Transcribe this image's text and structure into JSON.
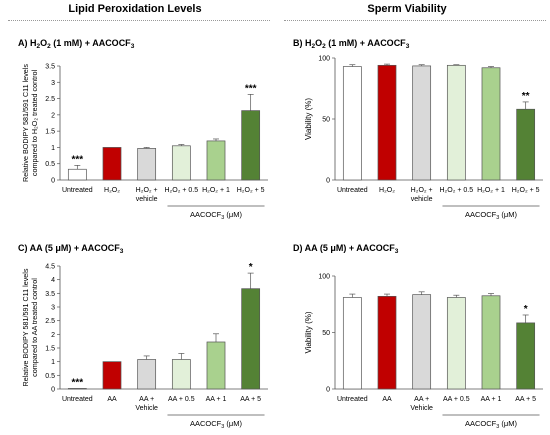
{
  "headers": {
    "left": "Lipid Peroxidation Levels",
    "right": "Sperm Viability"
  },
  "chart_data": [
    {
      "type": "bar",
      "panel": "A",
      "title_parts": [
        "A) H",
        "2",
        "O",
        "2",
        " (1 mM) + AACOCF",
        "3"
      ],
      "ylabel": [
        "Relative BODIPY 581/591 C11 levels",
        "compared to H2O2 treated control"
      ],
      "ylim": [
        0,
        3.5
      ],
      "yticks": [
        0,
        0.5,
        1,
        1.5,
        2,
        2.5,
        3,
        3.5
      ],
      "categories": [
        [
          "Untreated"
        ],
        [
          "H2O2"
        ],
        [
          "H2O2 +",
          "vehicle"
        ],
        [
          "H2O2 + 0.5"
        ],
        [
          "H2O2 + 1"
        ],
        [
          "H2O2 + 5"
        ]
      ],
      "values": [
        0.33,
        1.0,
        0.97,
        1.05,
        1.2,
        2.13
      ],
      "errors": [
        0.12,
        0,
        0.03,
        0.04,
        0.06,
        0.5
      ],
      "annotations": [
        "***",
        "",
        "",
        "",
        "",
        "***"
      ],
      "group_label": "AACOCF3 (μM)",
      "colors": [
        "#ffffff",
        "#c00000",
        "#d9d9d9",
        "#e2f0d9",
        "#a9d18e",
        "#548235"
      ]
    },
    {
      "type": "bar",
      "panel": "B",
      "title_parts": [
        "B) H",
        "2",
        "O",
        "2",
        " (1 mM) + AACOCF",
        "3"
      ],
      "ylabel": [
        "Viability (%)"
      ],
      "ylim": [
        0,
        100
      ],
      "yticks": [
        0,
        50,
        100
      ],
      "categories": [
        [
          "Untreated"
        ],
        [
          "H2O2"
        ],
        [
          "H2O2 +",
          "vehicle"
        ],
        [
          "H2O2 + 0.5"
        ],
        [
          "H2O2 + 1"
        ],
        [
          "H2O2 + 5"
        ]
      ],
      "values": [
        93,
        94,
        93.5,
        94,
        92,
        58
      ],
      "errors": [
        1.5,
        1,
        1,
        0.5,
        1,
        6
      ],
      "annotations": [
        "",
        "",
        "",
        "",
        "",
        "**"
      ],
      "group_label": "AACOCF3 (μM)",
      "colors": [
        "#ffffff",
        "#c00000",
        "#d9d9d9",
        "#e2f0d9",
        "#a9d18e",
        "#548235"
      ]
    },
    {
      "type": "bar",
      "panel": "C",
      "title_parts": [
        "C) AA (5 μM) + AACOCF",
        "3"
      ],
      "ylabel": [
        "Relative BODIPY 581/591 C11 levels",
        "compared to AA treated control"
      ],
      "ylim": [
        0,
        4.5
      ],
      "yticks": [
        0,
        0.5,
        1,
        1.5,
        2,
        2.5,
        3,
        3.5,
        4,
        4.5
      ],
      "categories": [
        [
          "Untreated"
        ],
        [
          "AA"
        ],
        [
          "AA +",
          "Vehicle"
        ],
        [
          "AA + 0.5"
        ],
        [
          "AA + 1"
        ],
        [
          "AA + 5"
        ]
      ],
      "values": [
        0.02,
        1.0,
        1.08,
        1.08,
        1.72,
        3.67
      ],
      "errors": [
        0,
        0,
        0.13,
        0.22,
        0.3,
        0.57
      ],
      "annotations": [
        "***",
        "",
        "",
        "",
        "",
        "*"
      ],
      "group_label": "AACOCF3 (μM)",
      "colors": [
        "#ffffff",
        "#c00000",
        "#d9d9d9",
        "#e2f0d9",
        "#a9d18e",
        "#548235"
      ]
    },
    {
      "type": "bar",
      "panel": "D",
      "title_parts": [
        "D) AA (5 μM) + AACOCF",
        "3"
      ],
      "ylabel": [
        "Viability (%)"
      ],
      "ylim": [
        0,
        100
      ],
      "yticks": [
        0,
        50,
        100
      ],
      "categories": [
        [
          "Untreated"
        ],
        [
          "AA"
        ],
        [
          "AA +",
          "Vehicle"
        ],
        [
          "AA + 0.5"
        ],
        [
          "AA + 1"
        ],
        [
          "AA + 5"
        ]
      ],
      "values": [
        81,
        82,
        83.5,
        81,
        82.5,
        58.5
      ],
      "errors": [
        3,
        2,
        2.5,
        2,
        2,
        7
      ],
      "annotations": [
        "",
        "",
        "",
        "",
        "",
        "*"
      ],
      "group_label": "AACOCF3 (μM)",
      "colors": [
        "#ffffff",
        "#c00000",
        "#d9d9d9",
        "#e2f0d9",
        "#a9d18e",
        "#548235"
      ]
    }
  ]
}
